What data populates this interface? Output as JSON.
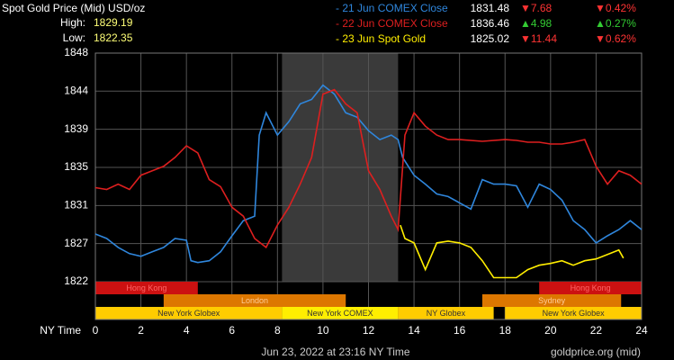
{
  "chart_data": {
    "type": "line",
    "title": "Spot Gold Price (Mid) USD/oz",
    "high_label": "High:",
    "high": 1829.19,
    "low_label": "Low:",
    "low": 1822.35,
    "xlabel": "NY Time",
    "footer": "Jun 23, 2022 at 23:16 NY Time",
    "source": "goldprice.org (mid)",
    "xlim": [
      0,
      24
    ],
    "xticks": [
      0,
      2,
      4,
      6,
      8,
      10,
      12,
      14,
      16,
      18,
      20,
      22,
      24
    ],
    "ylim": [
      1822.35,
      1848
    ],
    "yticks": [
      {
        "value": 1822.35,
        "label": "1822"
      },
      {
        "value": 1826.63,
        "label": "1827"
      },
      {
        "value": 1830.9,
        "label": "1831"
      },
      {
        "value": 1835.18,
        "label": "1835"
      },
      {
        "value": 1839.45,
        "label": "1839"
      },
      {
        "value": 1843.73,
        "label": "1844"
      },
      {
        "value": 1848,
        "label": "1848"
      }
    ],
    "grid": true,
    "highlight": [
      8.2,
      13.3
    ],
    "series": [
      {
        "name": "- 21 Jun COMEX Close",
        "color": "#2f86dc",
        "price": 1831.48,
        "change": "▼7.68",
        "change_pct": "▼0.42%",
        "change_color": "#ff3333",
        "x": [
          0,
          0.5,
          1,
          1.5,
          2,
          2.5,
          3,
          3.5,
          4,
          4.2,
          4.5,
          5,
          5.5,
          6,
          6.5,
          7,
          7.2,
          7.5,
          8,
          8.5,
          9,
          9.5,
          10,
          10.5,
          11,
          11.5,
          12,
          12.5,
          13,
          13.3,
          13.5,
          14,
          14.5,
          15,
          15.5,
          16,
          16.5,
          17,
          17.5,
          18,
          18.5,
          19,
          19.5,
          20,
          20.5,
          21,
          21.5,
          22,
          22.5,
          23,
          23.5,
          24
        ],
        "values": [
          1827.7,
          1827.2,
          1826.2,
          1825.5,
          1825.2,
          1825.7,
          1826.2,
          1827.2,
          1827.0,
          1824.7,
          1824.5,
          1824.7,
          1825.7,
          1827.5,
          1829.2,
          1829.7,
          1838.8,
          1841.3,
          1838.8,
          1840.3,
          1842.3,
          1842.8,
          1844.4,
          1843.4,
          1841.3,
          1840.8,
          1839.3,
          1838.3,
          1838.8,
          1838.3,
          1836.3,
          1834.3,
          1833.3,
          1832.2,
          1831.9,
          1831.2,
          1830.5,
          1833.8,
          1833.3,
          1833.3,
          1833.1,
          1830.7,
          1833.3,
          1832.7,
          1831.5,
          1829.2,
          1828.2,
          1826.7,
          1827.5,
          1828.2,
          1829.2,
          1828.2
        ]
      },
      {
        "name": "- 22 Jun COMEX Close",
        "color": "#dd1f1f",
        "price": 1836.46,
        "change": "▲4.98",
        "change_pct": "▲0.27%",
        "change_color": "#33cc33",
        "x": [
          0,
          0.5,
          1,
          1.5,
          2,
          2.5,
          3,
          3.5,
          4,
          4.5,
          5,
          5.5,
          6,
          6.5,
          7,
          7.5,
          8,
          8.5,
          9,
          9.5,
          10,
          10.5,
          11,
          11.5,
          12,
          12.5,
          13,
          13.3,
          13.6,
          14,
          14.5,
          15,
          15.5,
          16,
          17,
          18,
          18.5,
          19,
          19.5,
          20,
          20.5,
          21,
          21.5,
          22,
          22.5,
          23,
          23.5,
          24
        ],
        "values": [
          1832.9,
          1832.7,
          1833.3,
          1832.7,
          1834.3,
          1834.8,
          1835.3,
          1836.3,
          1837.6,
          1836.8,
          1833.8,
          1833.0,
          1830.7,
          1829.7,
          1827.2,
          1826.2,
          1828.7,
          1830.7,
          1833.3,
          1836.3,
          1843.4,
          1843.9,
          1842.3,
          1841.3,
          1834.8,
          1832.7,
          1829.7,
          1828.2,
          1838.8,
          1841.3,
          1839.8,
          1838.8,
          1838.3,
          1838.3,
          1838.1,
          1838.3,
          1838.2,
          1838.0,
          1838.0,
          1837.8,
          1837.8,
          1838.0,
          1838.3,
          1835.3,
          1833.3,
          1834.8,
          1834.3,
          1833.3
        ]
      },
      {
        "name": "- 23 Jun Spot Gold",
        "color": "#ffee00",
        "price": 1825.02,
        "change": "▼11.44",
        "change_pct": "▼0.62%",
        "change_color": "#ff3333",
        "x": [
          13.4,
          13.6,
          14,
          14.5,
          15,
          15.5,
          16,
          16.5,
          17,
          17.5,
          18,
          18.5,
          19,
          19.5,
          20,
          20.5,
          21,
          21.5,
          22,
          22.5,
          23,
          23.2
        ],
        "values": [
          1828.7,
          1827.2,
          1826.7,
          1823.7,
          1826.7,
          1826.9,
          1826.7,
          1826.2,
          1824.7,
          1822.8,
          1822.8,
          1822.8,
          1823.7,
          1824.2,
          1824.4,
          1824.7,
          1824.2,
          1824.7,
          1824.9,
          1825.4,
          1825.9,
          1825.0
        ]
      }
    ],
    "session_rows": [
      [
        {
          "name": "Hong Kong",
          "start": 0,
          "end": 4.5,
          "color": "#cc1111",
          "text_color": "#ff6666"
        },
        {
          "name": "Hong Kong",
          "start": 19.5,
          "end": 24,
          "color": "#cc1111",
          "text_color": "#ff6666"
        }
      ],
      [
        {
          "name": "London",
          "start": 3,
          "end": 11,
          "color": "#dd7700",
          "text_color": "#ffcc99"
        },
        {
          "name": "Sydney",
          "start": 17,
          "end": 23.1,
          "color": "#dd7700",
          "text_color": "#ffcc99"
        }
      ],
      [
        {
          "name": "New York Globex",
          "start": 0,
          "end": 8.2,
          "color": "#ffcc00",
          "text_color": "#333333"
        },
        {
          "name": "New York COMEX",
          "start": 8.2,
          "end": 13.3,
          "color": "#ffee00",
          "text_color": "#333333"
        },
        {
          "name": "NY Globex",
          "start": 13.3,
          "end": 17.5,
          "color": "#ffcc00",
          "text_color": "#333333"
        },
        {
          "name": "New York Globex",
          "start": 18,
          "end": 24,
          "color": "#ffcc00",
          "text_color": "#333333"
        }
      ]
    ]
  }
}
